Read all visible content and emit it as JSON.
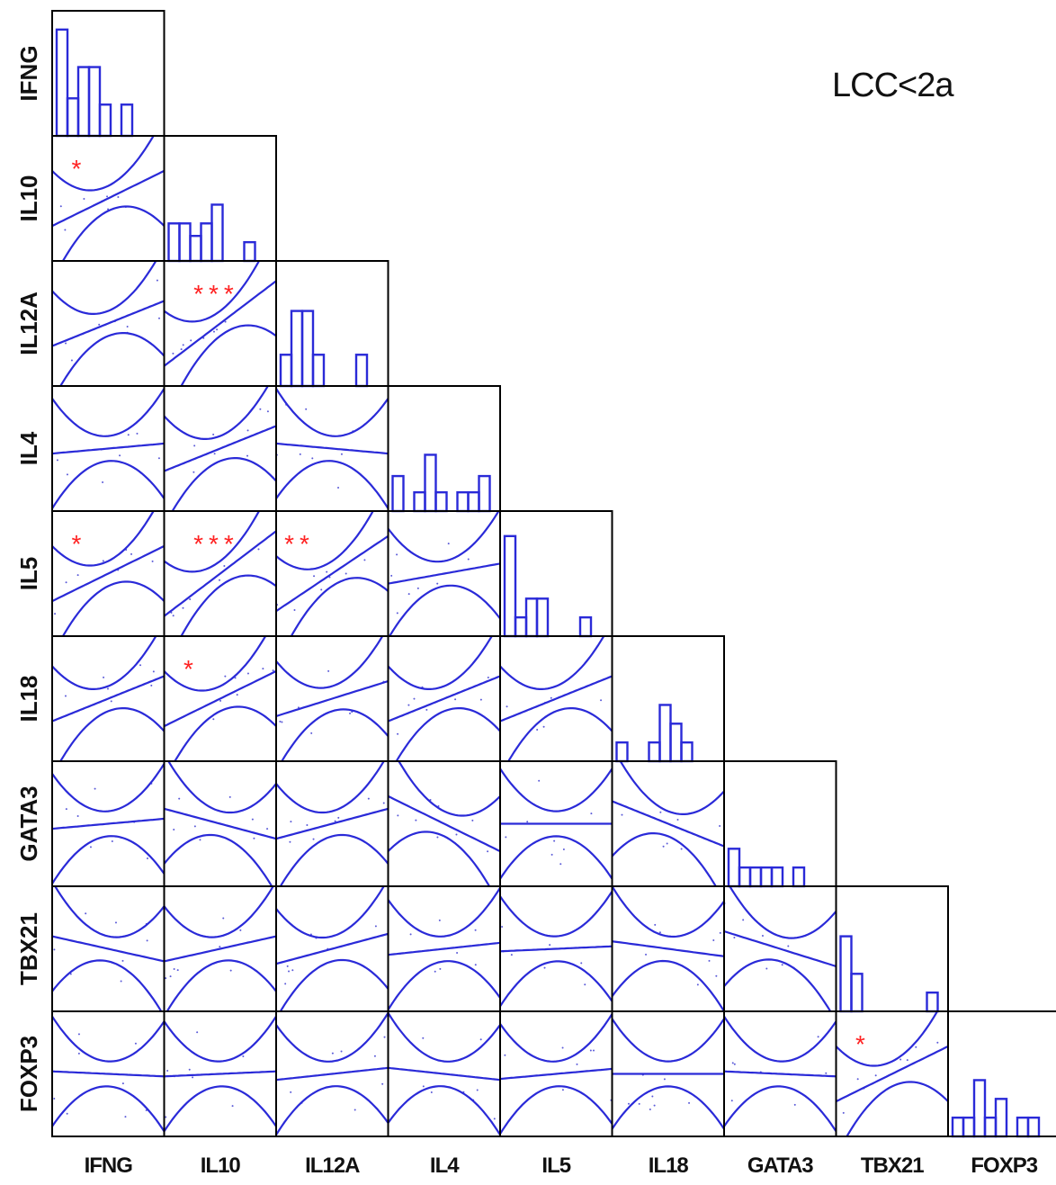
{
  "chart_data": {
    "type": "scatter-matrix",
    "title": "LCC<2a",
    "variables": [
      "IFNG",
      "IL10",
      "IL12A",
      "IL4",
      "IL5",
      "IL18",
      "GATA3",
      "TBX21",
      "FOXP3"
    ],
    "histograms": [
      [
        0.85,
        0.3,
        0.55,
        0.55,
        0.25,
        0,
        0.25
      ],
      [
        0.3,
        0.3,
        0.2,
        0.3,
        0.45,
        0,
        0,
        0.15
      ],
      [
        0.25,
        0.6,
        0.6,
        0.25,
        0,
        0,
        0,
        0.25
      ],
      [
        0.28,
        0,
        0.15,
        0.45,
        0.15,
        0,
        0.15,
        0.15,
        0.28
      ],
      [
        0.8,
        0.15,
        0.3,
        0.3,
        0,
        0,
        0,
        0.15
      ],
      [
        0.15,
        0,
        0,
        0.15,
        0.45,
        0.3,
        0.15
      ],
      [
        0.3,
        0.15,
        0.15,
        0.15,
        0.15,
        0,
        0.15
      ],
      [
        0.6,
        0.3,
        0,
        0,
        0,
        0,
        0,
        0,
        0.15
      ],
      [
        0.15,
        0.15,
        0.45,
        0.15,
        0.3,
        0,
        0.15,
        0.15
      ]
    ],
    "correlations": [
      {
        "row": "IL10",
        "col": "IFNG",
        "r": 0.55,
        "stars": "*"
      },
      {
        "row": "IL12A",
        "col": "IFNG",
        "r": 0.45,
        "stars": ""
      },
      {
        "row": "IL12A",
        "col": "IL10",
        "r": 0.85,
        "stars": "***"
      },
      {
        "row": "IL4",
        "col": "IFNG",
        "r": 0.1,
        "stars": ""
      },
      {
        "row": "IL4",
        "col": "IL10",
        "r": 0.45,
        "stars": ""
      },
      {
        "row": "IL4",
        "col": "IL12A",
        "r": -0.1,
        "stars": ""
      },
      {
        "row": "IL5",
        "col": "IFNG",
        "r": 0.55,
        "stars": "*"
      },
      {
        "row": "IL5",
        "col": "IL10",
        "r": 0.85,
        "stars": "***"
      },
      {
        "row": "IL5",
        "col": "IL12A",
        "r": 0.75,
        "stars": "**"
      },
      {
        "row": "IL5",
        "col": "IL4",
        "r": 0.2,
        "stars": ""
      },
      {
        "row": "IL18",
        "col": "IFNG",
        "r": 0.45,
        "stars": ""
      },
      {
        "row": "IL18",
        "col": "IL10",
        "r": 0.55,
        "stars": "*"
      },
      {
        "row": "IL18",
        "col": "IL12A",
        "r": 0.35,
        "stars": ""
      },
      {
        "row": "IL18",
        "col": "IL4",
        "r": 0.45,
        "stars": ""
      },
      {
        "row": "IL18",
        "col": "IL5",
        "r": 0.45,
        "stars": ""
      },
      {
        "row": "GATA3",
        "col": "IFNG",
        "r": 0.1,
        "stars": ""
      },
      {
        "row": "GATA3",
        "col": "IL10",
        "r": -0.3,
        "stars": ""
      },
      {
        "row": "GATA3",
        "col": "IL12A",
        "r": 0.3,
        "stars": ""
      },
      {
        "row": "GATA3",
        "col": "IL4",
        "r": -0.55,
        "stars": ""
      },
      {
        "row": "GATA3",
        "col": "IL5",
        "r": 0.0,
        "stars": ""
      },
      {
        "row": "GATA3",
        "col": "IL18",
        "r": -0.45,
        "stars": ""
      },
      {
        "row": "TBX21",
        "col": "IFNG",
        "r": -0.25,
        "stars": ""
      },
      {
        "row": "TBX21",
        "col": "IL10",
        "r": 0.25,
        "stars": ""
      },
      {
        "row": "TBX21",
        "col": "IL12A",
        "r": 0.3,
        "stars": ""
      },
      {
        "row": "TBX21",
        "col": "IL4",
        "r": 0.12,
        "stars": ""
      },
      {
        "row": "TBX21",
        "col": "IL5",
        "r": 0.05,
        "stars": ""
      },
      {
        "row": "TBX21",
        "col": "IL18",
        "r": -0.15,
        "stars": ""
      },
      {
        "row": "TBX21",
        "col": "GATA3",
        "r": -0.35,
        "stars": ""
      },
      {
        "row": "FOXP3",
        "col": "IFNG",
        "r": -0.05,
        "stars": ""
      },
      {
        "row": "FOXP3",
        "col": "IL10",
        "r": 0.05,
        "stars": ""
      },
      {
        "row": "FOXP3",
        "col": "IL12A",
        "r": 0.12,
        "stars": ""
      },
      {
        "row": "FOXP3",
        "col": "IL4",
        "r": -0.12,
        "stars": ""
      },
      {
        "row": "FOXP3",
        "col": "IL5",
        "r": 0.1,
        "stars": ""
      },
      {
        "row": "FOXP3",
        "col": "IL18",
        "r": 0.0,
        "stars": ""
      },
      {
        "row": "FOXP3",
        "col": "GATA3",
        "r": -0.05,
        "stars": ""
      },
      {
        "row": "FOXP3",
        "col": "TBX21",
        "r": 0.55,
        "stars": "*"
      }
    ],
    "colors": {
      "curves": "#2a2ad8",
      "bars": "#2a2ad8",
      "stars": "#ff2222",
      "frame": "#000000",
      "dots": "#5a5ad8"
    }
  }
}
